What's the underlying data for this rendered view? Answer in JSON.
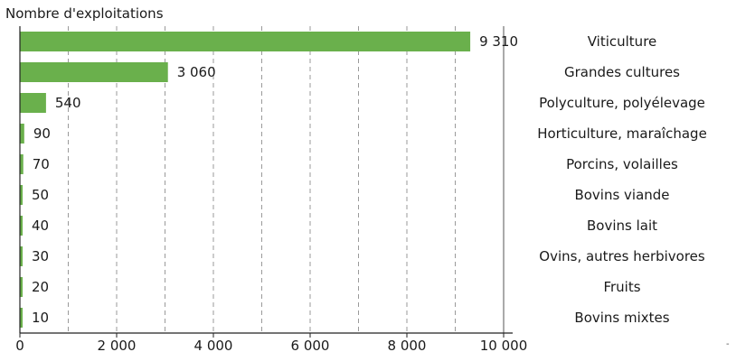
{
  "chart_data": {
    "type": "bar",
    "orientation": "horizontal",
    "title": "",
    "ylabel": "Nombre d'exploitations",
    "xlabel": "",
    "categories": [
      "Viticulture",
      "Grandes cultures",
      "Polyculture, polyélevage",
      "Horticulture, maraîchage",
      "Porcins, volailles",
      "Bovins viande",
      "Bovins lait",
      "Ovins, autres herbivores",
      "Fruits",
      "Bovins mixtes"
    ],
    "values": [
      9310,
      3060,
      540,
      90,
      70,
      50,
      40,
      30,
      20,
      10
    ],
    "value_labels": [
      "9 310",
      "3 060",
      "540",
      "90",
      "70",
      "50",
      "40",
      "30",
      "20",
      "10"
    ],
    "xlim": [
      0,
      10000
    ],
    "xticks": [
      0,
      2000,
      4000,
      6000,
      8000,
      10000
    ],
    "xtick_labels": [
      "0",
      "2 000",
      "4 000",
      "6 000",
      "8 000",
      "10 000"
    ],
    "grid": "vertical dashed lines every 1 000",
    "bar_color": "#6ab04c",
    "grid_color": "#9a9a9a"
  },
  "footer_mark": "-"
}
